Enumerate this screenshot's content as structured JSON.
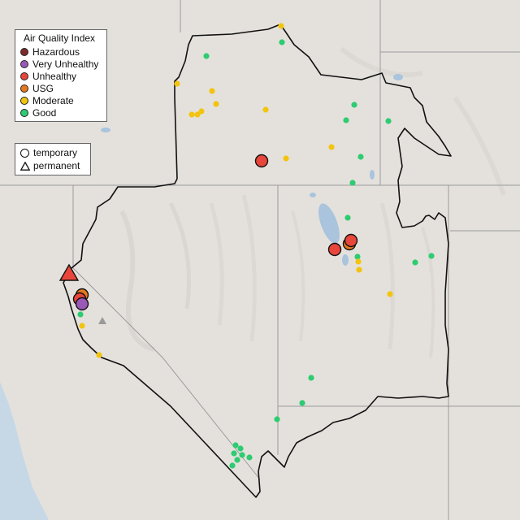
{
  "legend": {
    "title": "Air Quality Index",
    "categories": [
      {
        "label": "Hazardous",
        "color": "#7e2a2a"
      },
      {
        "label": "Very Unhealthy",
        "color": "#9b59b6"
      },
      {
        "label": "Unhealthy",
        "color": "#e8463a"
      },
      {
        "label": "USG",
        "color": "#e6781e"
      },
      {
        "label": "Moderate",
        "color": "#f2c40f"
      },
      {
        "label": "Good",
        "color": "#2ecc71"
      }
    ]
  },
  "monitor_types": {
    "temporary": "temporary",
    "permanent": "permanent"
  }
}
